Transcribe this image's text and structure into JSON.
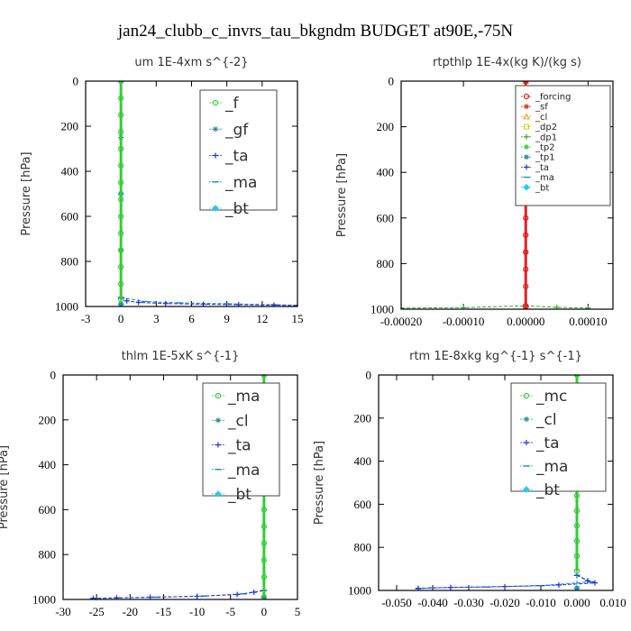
{
  "suptitle": "jan24_clubb_c_invrs_tau_bkgndm  BUDGET at90E,-75N",
  "chart_data": [
    {
      "type": "line",
      "title": "um  1E-4xm s^{-2}",
      "ylabel": "Pressure [hPa]",
      "xlim": [
        -3,
        15
      ],
      "ylim": [
        1000,
        0
      ],
      "xticks": [
        "-3",
        "0",
        "3",
        "6",
        "9",
        "12",
        "15"
      ],
      "yticks": [
        "0",
        "200",
        "400",
        "600",
        "800",
        "1000"
      ],
      "legend_size": "large",
      "series": [
        {
          "name": "_f",
          "color": "#33cc33",
          "marker": "circle",
          "x": [
            0,
            0,
            0,
            0,
            0,
            0,
            0,
            0,
            0,
            0,
            0,
            0,
            0,
            0
          ],
          "y": [
            0,
            75,
            150,
            225,
            300,
            375,
            450,
            525,
            600,
            675,
            750,
            825,
            900,
            970
          ]
        },
        {
          "name": "_gf",
          "color": "#2a8c8c",
          "marker": "star",
          "x": [
            0,
            0,
            0,
            0,
            0
          ],
          "y": [
            0,
            250,
            500,
            750,
            990
          ]
        },
        {
          "name": "_ta",
          "color": "#2233dd",
          "marker": "plus",
          "x": [
            0,
            0,
            0.5,
            1.5,
            3.8,
            7,
            10,
            13,
            15
          ],
          "y": [
            0,
            960,
            975,
            982,
            987,
            990,
            992,
            994,
            996
          ]
        },
        {
          "name": "_ma",
          "color": "#1a8ad4",
          "marker": "dash",
          "x": [
            0,
            0,
            2,
            5,
            9,
            13,
            15
          ],
          "y": [
            0,
            960,
            978,
            984,
            988,
            992,
            995
          ]
        },
        {
          "name": "_bt",
          "color": "#22ccee",
          "marker": "diamond",
          "x": [
            0,
            0,
            0
          ],
          "y": [
            0,
            500,
            990
          ]
        }
      ]
    },
    {
      "type": "line",
      "title": "rtpthlp  1E-4x(kg K)/(kg s)",
      "ylabel": "Pressure [hPa]",
      "xlim": [
        -0.0002,
        0.00014
      ],
      "ylim": [
        1000,
        0
      ],
      "xticks": [
        "-0.00020",
        "-0.00010",
        "0.00000",
        "0.00010"
      ],
      "xtickvals": [
        -0.0002,
        -0.0001,
        0,
        0.0001
      ],
      "yticks": [
        "0",
        "200",
        "400",
        "600",
        "800",
        "1000"
      ],
      "legend_size": "small",
      "series": [
        {
          "name": "_forcing",
          "color": "#dd2222",
          "marker": "circle",
          "x": [
            0,
            0,
            0,
            0,
            0,
            0,
            0,
            0,
            0,
            0,
            0,
            0,
            0,
            0
          ],
          "y": [
            0,
            75,
            150,
            225,
            300,
            375,
            450,
            525,
            600,
            675,
            750,
            825,
            900,
            985
          ]
        },
        {
          "name": "_sf",
          "color": "#dd3322",
          "marker": "star",
          "x": [
            0,
            0,
            0,
            0,
            0
          ],
          "y": [
            0,
            250,
            500,
            750,
            990
          ]
        },
        {
          "name": "_cl",
          "color": "#ee9922",
          "marker": "triangle",
          "x": [
            0,
            0,
            0
          ],
          "y": [
            0,
            500,
            990
          ]
        },
        {
          "name": "_dp2",
          "color": "#cccc22",
          "marker": "square",
          "x": [
            0,
            0,
            0
          ],
          "y": [
            0,
            500,
            990
          ]
        },
        {
          "name": "_dp1",
          "color": "#33aa33",
          "marker": "plus",
          "x": [
            -0.0002,
            -0.0001,
            0,
            5e-05,
            0.0001
          ],
          "y": [
            995,
            993,
            985,
            992,
            995
          ]
        },
        {
          "name": "_tp2",
          "color": "#33cc33",
          "marker": "star",
          "x": [
            0,
            0,
            0
          ],
          "y": [
            0,
            500,
            990
          ]
        },
        {
          "name": "_tp1",
          "color": "#2a8c8c",
          "marker": "star",
          "x": [
            0,
            0,
            0
          ],
          "y": [
            0,
            500,
            990
          ]
        },
        {
          "name": "_ta",
          "color": "#2233dd",
          "marker": "plus",
          "x": [
            0,
            0,
            0
          ],
          "y": [
            0,
            500,
            990
          ]
        },
        {
          "name": "_ma",
          "color": "#1a8ad4",
          "marker": "dash",
          "x": [
            0,
            0,
            0
          ],
          "y": [
            0,
            500,
            990
          ]
        },
        {
          "name": "_bt",
          "color": "#22ccee",
          "marker": "diamond",
          "x": [
            0,
            0,
            0
          ],
          "y": [
            0,
            500,
            990
          ]
        }
      ]
    },
    {
      "type": "line",
      "title": "thlm  1E-5xK s^{-1}",
      "ylabel": "Pressure [hPa]",
      "xlim": [
        -30,
        5
      ],
      "ylim": [
        1000,
        0
      ],
      "xticks": [
        "-30",
        "-25",
        "-20",
        "-15",
        "-10",
        "-5",
        "0",
        "5"
      ],
      "yticks": [
        "0",
        "200",
        "400",
        "600",
        "800",
        "1000"
      ],
      "legend_size": "large",
      "series": [
        {
          "name": "_ma",
          "color": "#33cc33",
          "marker": "circle",
          "x": [
            0,
            0,
            0,
            0,
            0,
            0,
            0,
            0,
            0,
            0,
            0,
            0,
            0,
            0
          ],
          "y": [
            0,
            75,
            150,
            225,
            300,
            375,
            450,
            525,
            600,
            675,
            750,
            825,
            900,
            990
          ]
        },
        {
          "name": "_cl",
          "color": "#2a8c8c",
          "marker": "star",
          "x": [
            0,
            0,
            0
          ],
          "y": [
            0,
            500,
            990
          ]
        },
        {
          "name": "_ta",
          "color": "#2233dd",
          "marker": "plus",
          "x": [
            0,
            0,
            -1.5,
            -4,
            -10,
            -17,
            -22,
            -25.5
          ],
          "y": [
            0,
            960,
            968,
            978,
            986,
            990,
            993,
            995
          ]
        },
        {
          "name": "_ma",
          "color": "#1a8ad4",
          "marker": "dash",
          "x": [
            0,
            0,
            -3,
            -9,
            -16,
            -22,
            -25.5
          ],
          "y": [
            0,
            960,
            975,
            985,
            990,
            993,
            996
          ]
        },
        {
          "name": "_bt",
          "color": "#22ccee",
          "marker": "diamond",
          "x": [
            0,
            0,
            0
          ],
          "y": [
            0,
            500,
            990
          ]
        }
      ]
    },
    {
      "type": "line",
      "title": "rtm  1E-8xkg kg^{-1} s^{-1}",
      "ylabel": "Pressure [hPa]",
      "xlim": [
        -0.055,
        0.01
      ],
      "ylim": [
        1000,
        0
      ],
      "xticks": [
        "-0.050",
        "-0.040",
        "-0.030",
        "-0.020",
        "-0.010",
        "0.000",
        "0.010"
      ],
      "xtickvals": [
        -0.05,
        -0.04,
        -0.03,
        -0.02,
        -0.01,
        0,
        0.01
      ],
      "yticks": [
        "0",
        "200",
        "400",
        "600",
        "800",
        "1000"
      ],
      "legend_size": "large",
      "series": [
        {
          "name": "_mc",
          "color": "#33cc33",
          "marker": "circle",
          "x": [
            0,
            0,
            0,
            0,
            0,
            0,
            0,
            0,
            0,
            0,
            0,
            0,
            0,
            0
          ],
          "y": [
            0,
            70,
            140,
            210,
            280,
            350,
            420,
            490,
            560,
            630,
            700,
            770,
            840,
            910
          ]
        },
        {
          "name": "_cl",
          "color": "#2a8c8c",
          "marker": "star",
          "x": [
            0,
            0,
            0
          ],
          "y": [
            0,
            500,
            990
          ]
        },
        {
          "name": "_ta",
          "color": "#2233dd",
          "marker": "plus",
          "x": [
            0,
            0,
            0.003,
            0.005,
            -0.005,
            -0.02,
            -0.035,
            -0.044
          ],
          "y": [
            0,
            930,
            955,
            965,
            975,
            982,
            986,
            990
          ]
        },
        {
          "name": "_ma",
          "color": "#1a8ad4",
          "marker": "dash",
          "x": [
            0,
            0,
            0.004,
            -0.01,
            -0.025,
            -0.04,
            -0.044
          ],
          "y": [
            0,
            930,
            960,
            978,
            984,
            988,
            992
          ]
        },
        {
          "name": "_bt",
          "color": "#22ccee",
          "marker": "diamond",
          "x": [
            0,
            0,
            0
          ],
          "y": [
            0,
            500,
            990
          ]
        }
      ]
    }
  ]
}
